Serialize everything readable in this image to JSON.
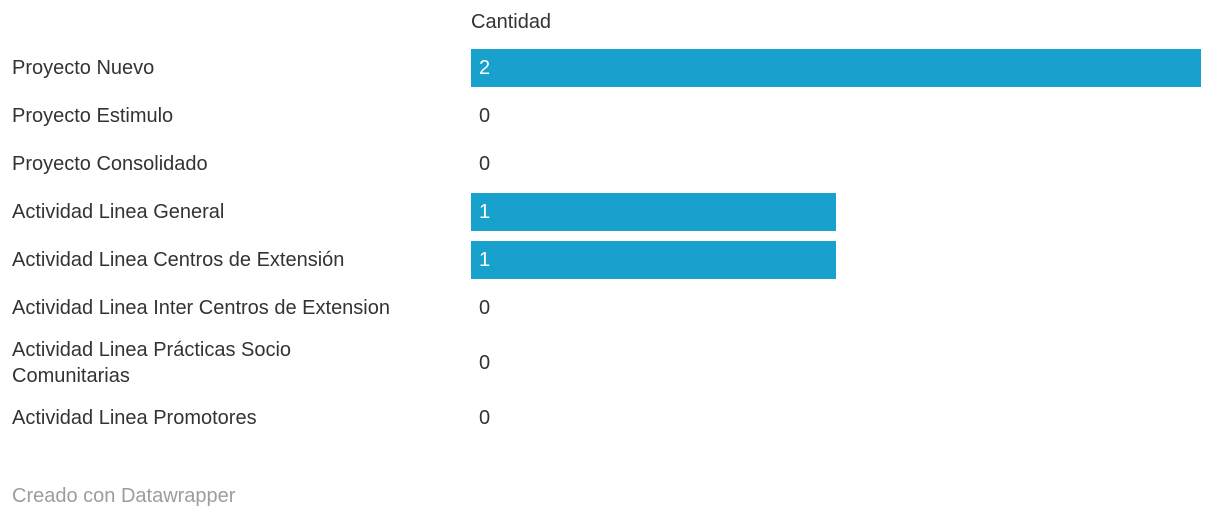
{
  "chart_data": {
    "type": "bar",
    "orientation": "horizontal",
    "value_column": "Cantidad",
    "categories": [
      "Proyecto Nuevo",
      "Proyecto Estimulo",
      "Proyecto Consolidado",
      "Actividad Linea General",
      "Actividad Linea Centros de Extensión",
      "Actividad Linea Inter Centros de Extension",
      "Actividad Linea Prácticas Socio Comunitarias",
      "Actividad Linea Promotores"
    ],
    "values": [
      2,
      0,
      0,
      1,
      1,
      0,
      0,
      0
    ],
    "xlim": [
      0,
      2
    ],
    "bar_color": "#18a1cd",
    "grid": false,
    "legend": false,
    "value_label_position": "inside-start",
    "footer": "Creado con Datawrapper"
  }
}
